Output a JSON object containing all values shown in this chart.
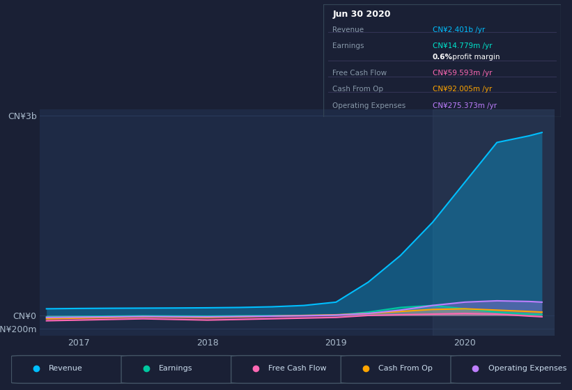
{
  "bg_color": "#1a2035",
  "plot_bg_color": "#1e2a45",
  "grid_color": "#2a3a5a",
  "ylim": [
    -300000000,
    3100000000
  ],
  "xlim_start": 2016.7,
  "xlim_end": 2020.7,
  "series": {
    "revenue": {
      "color": "#00bfff",
      "fill_color": "#00bfff",
      "fill_alpha": 0.3,
      "label": "Revenue",
      "x": [
        2016.75,
        2017.0,
        2017.25,
        2017.5,
        2017.75,
        2018.0,
        2018.25,
        2018.5,
        2018.75,
        2019.0,
        2019.25,
        2019.5,
        2019.75,
        2020.0,
        2020.25,
        2020.5,
        2020.6
      ],
      "y": [
        100000000,
        105000000,
        108000000,
        110000000,
        112000000,
        115000000,
        120000000,
        130000000,
        150000000,
        200000000,
        500000000,
        900000000,
        1400000000,
        2000000000,
        2600000000,
        2700000000,
        2750000000
      ]
    },
    "earnings": {
      "color": "#00c8a0",
      "fill_color": "#00c8a0",
      "fill_alpha": 0.4,
      "label": "Earnings",
      "x": [
        2016.75,
        2017.0,
        2017.25,
        2017.5,
        2017.75,
        2018.0,
        2018.25,
        2018.5,
        2018.75,
        2019.0,
        2019.25,
        2019.5,
        2019.75,
        2020.0,
        2020.25,
        2020.5,
        2020.6
      ],
      "y": [
        -20000000,
        -15000000,
        -10000000,
        -5000000,
        -8000000,
        -10000000,
        -5000000,
        -2000000,
        0,
        5000000,
        50000000,
        120000000,
        150000000,
        100000000,
        50000000,
        20000000,
        15000000
      ]
    },
    "free_cash_flow": {
      "color": "#ff69b4",
      "fill_color": "#ff69b4",
      "fill_alpha": 0.3,
      "label": "Free Cash Flow",
      "x": [
        2016.75,
        2017.0,
        2017.25,
        2017.5,
        2017.75,
        2018.0,
        2018.25,
        2018.5,
        2018.75,
        2019.0,
        2019.25,
        2019.5,
        2019.75,
        2020.0,
        2020.25,
        2020.5,
        2020.6
      ],
      "y": [
        -80000000,
        -70000000,
        -60000000,
        -50000000,
        -60000000,
        -70000000,
        -60000000,
        -50000000,
        -40000000,
        -30000000,
        0,
        10000000,
        20000000,
        30000000,
        20000000,
        -10000000,
        -20000000
      ]
    },
    "cash_from_op": {
      "color": "#ffa500",
      "fill_color": "#ffa500",
      "fill_alpha": 0.3,
      "label": "Cash From Op",
      "x": [
        2016.75,
        2017.0,
        2017.25,
        2017.5,
        2017.75,
        2018.0,
        2018.25,
        2018.5,
        2018.75,
        2019.0,
        2019.25,
        2019.5,
        2019.75,
        2020.0,
        2020.25,
        2020.5,
        2020.6
      ],
      "y": [
        -50000000,
        -40000000,
        -30000000,
        -20000000,
        -25000000,
        -30000000,
        -20000000,
        -10000000,
        0,
        10000000,
        30000000,
        60000000,
        90000000,
        100000000,
        80000000,
        60000000,
        50000000
      ]
    },
    "operating_expenses": {
      "color": "#bf7fff",
      "fill_color": "#bf7fff",
      "fill_alpha": 0.3,
      "label": "Operating Expenses",
      "x": [
        2016.75,
        2017.0,
        2017.25,
        2017.5,
        2017.75,
        2018.0,
        2018.25,
        2018.5,
        2018.75,
        2019.0,
        2019.25,
        2019.5,
        2019.75,
        2020.0,
        2020.25,
        2020.5,
        2020.6
      ],
      "y": [
        -30000000,
        -25000000,
        -20000000,
        -15000000,
        -18000000,
        -20000000,
        -15000000,
        -10000000,
        -5000000,
        5000000,
        30000000,
        80000000,
        150000000,
        200000000,
        220000000,
        210000000,
        200000000
      ]
    }
  },
  "legend_items": [
    {
      "label": "Revenue",
      "color": "#00bfff"
    },
    {
      "label": "Earnings",
      "color": "#00c8a0"
    },
    {
      "label": "Free Cash Flow",
      "color": "#ff69b4"
    },
    {
      "label": "Cash From Op",
      "color": "#ffa500"
    },
    {
      "label": "Operating Expenses",
      "color": "#bf7fff"
    }
  ],
  "info_box": {
    "date": "Jun 30 2020",
    "rows": [
      {
        "label": "Revenue",
        "value": "CN¥2.401b /yr",
        "value_color": "#00bfff"
      },
      {
        "label": "Earnings",
        "value": "CN¥14.779m /yr",
        "value_color": "#00e5cc"
      },
      {
        "label": "",
        "value": "0.6% profit margin",
        "value_color": "#ffffff",
        "bold_prefix": "0.6%",
        "suffix": " profit margin"
      },
      {
        "label": "Free Cash Flow",
        "value": "CN¥59.593m /yr",
        "value_color": "#ff69b4"
      },
      {
        "label": "Cash From Op",
        "value": "CN¥92.005m /yr",
        "value_color": "#ffa500"
      },
      {
        "label": "Operating Expenses",
        "value": "CN¥275.373m /yr",
        "value_color": "#bf7fff"
      }
    ]
  }
}
